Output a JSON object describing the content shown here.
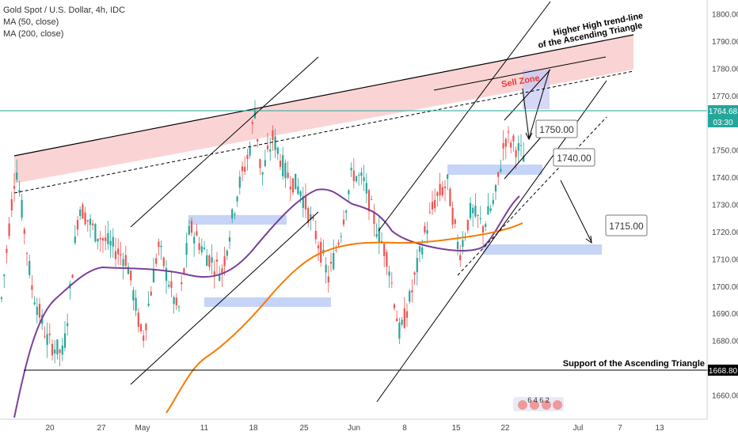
{
  "legend": {
    "symbol": "Gold Spot / U.S. Dollar, 4h, IDC",
    "ma50": "MA (50, close)",
    "ma200": "MA (200, close)"
  },
  "colors": {
    "up": "#26a69a",
    "down": "#ef5350",
    "ma50": "#7b3f98",
    "ma200": "#f57c00",
    "zone_pink": "#f8c6c6",
    "zone_blue": "#b7c9f5",
    "price_line": "#26a69a"
  },
  "chart_data": {
    "type": "candlestick",
    "y_axis": {
      "ylim": [
        1650,
        1805
      ],
      "ticks": [
        1660,
        1670,
        1680,
        1690,
        1700,
        1710,
        1720,
        1730,
        1740,
        1750,
        1760,
        1770,
        1780,
        1790,
        1800
      ],
      "side": "right"
    },
    "x_axis": {
      "labels": [
        "20",
        "27",
        "May",
        "11",
        "18",
        "25",
        "Jun",
        "8",
        "15",
        "22",
        "Jul",
        "7",
        "13"
      ]
    },
    "current_price": "1764.68",
    "countdown": "03:30",
    "support_price_label": "1668.80",
    "annotations": {
      "hh_trendline": [
        "Higher High trend-line",
        "of the Ascending Triangle"
      ],
      "support": "Support of the Ascending Triangle",
      "sell_zone": "Sell Zone",
      "targets": [
        "1750.00",
        "1740.00",
        "1715.00"
      ]
    },
    "events_badge": "6 4 6 2",
    "ma_series": [
      {
        "name": "MA (50, close)",
        "color": "#7b3f98"
      },
      {
        "name": "MA (200, close)",
        "color": "#f57c00"
      }
    ],
    "grid": false
  }
}
